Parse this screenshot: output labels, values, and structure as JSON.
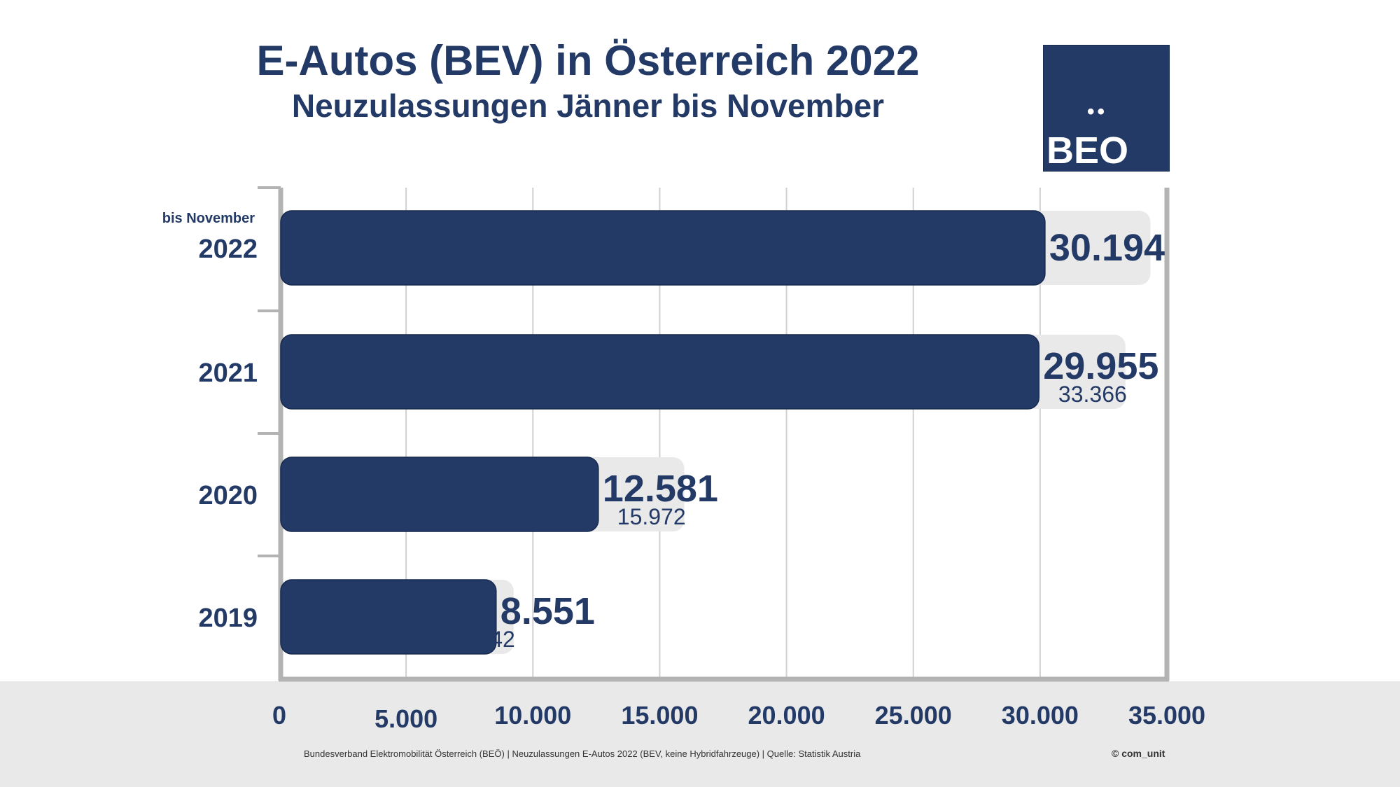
{
  "header": {
    "title": "E-Autos (BEV) in Österreich 2022",
    "subtitle": "Neuzulassungen Jänner bis November"
  },
  "logo": {
    "text": "BEO",
    "dots": "••"
  },
  "chart_data": {
    "type": "bar",
    "orientation": "horizontal",
    "categories": [
      "2022",
      "2021",
      "2020",
      "2019"
    ],
    "category_notes": {
      "2022": "bis November"
    },
    "series": [
      {
        "values": [
          30194,
          29955,
          12581,
          8551
        ],
        "color": "#233a67"
      },
      {
        "values": [
          34350,
          33366,
          15972,
          9242
        ],
        "color": "#e9e9e9"
      }
    ],
    "value_labels": [
      "30.194",
      "29.955",
      "12.581",
      "8.551"
    ],
    "total_labels": [
      "",
      "33.366",
      "15.972",
      "9.242"
    ],
    "xlim": [
      0,
      35000
    ],
    "xticks": [
      0,
      5000,
      10000,
      15000,
      20000,
      25000,
      30000,
      35000
    ],
    "xtick_labels": [
      "0",
      "5.000",
      "10.000",
      "15.000",
      "20.000",
      "25.000",
      "30.000",
      "35.000"
    ],
    "grid": true,
    "title": "E-Autos (BEV) in Österreich 2022",
    "subtitle": "Neuzulassungen Jänner bis November",
    "xlabel": "",
    "ylabel": ""
  },
  "footer": {
    "source": "Bundesverband Elektromobilität Österreich (BEÖ) | Neuzulassungen E-Autos 2022 (BEV, keine Hybridfahrzeuge) | Quelle: Statistik Austria",
    "copyright": "© com_unit"
  }
}
